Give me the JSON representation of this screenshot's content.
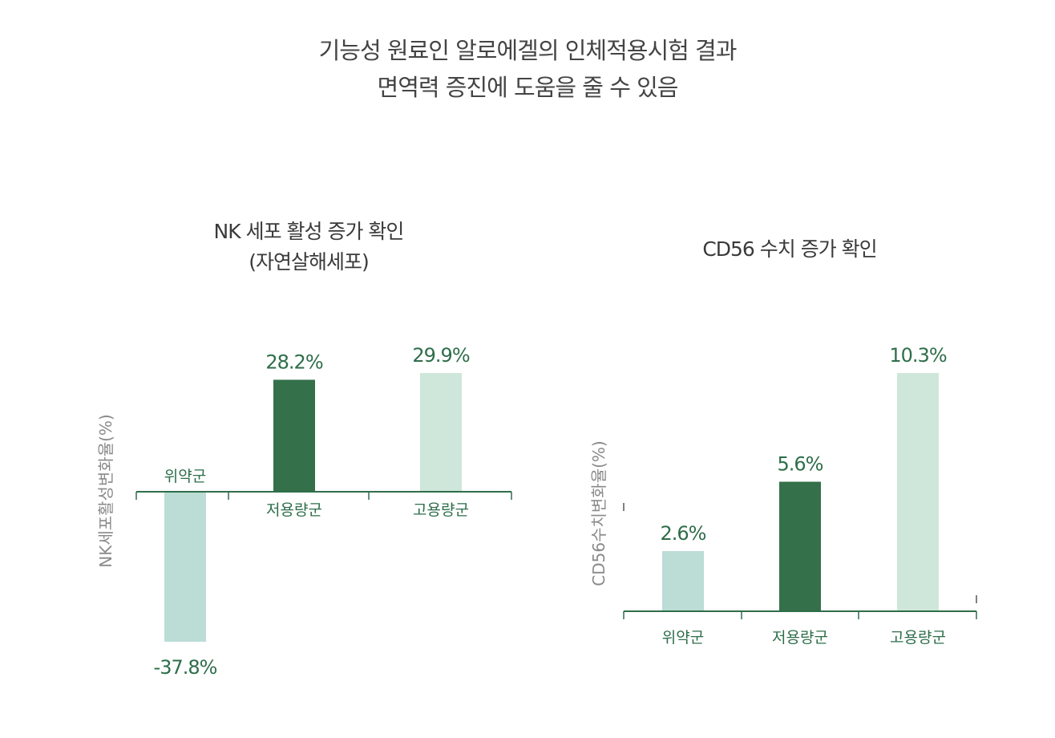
{
  "headline": {
    "line1": "기능성 원료인 알로에겔의 인체적용시험 결과",
    "line2": "면역력 증진에 도움을 줄 수 있음"
  },
  "colors": {
    "axis": "#2e6e4a",
    "label": "#2e6e4a",
    "placebo": "#bcdcd6",
    "low_dose": "#34704a",
    "high_dose": "#cfe6da",
    "ylabel": "#8a8a8a"
  },
  "chart_data": [
    {
      "type": "bar",
      "title_line1": "NK 세포 활성 증가 확인",
      "title_line2": "(자연살해세포)",
      "ylabel": "NK세포활성변화율(%)",
      "categories": [
        "위약군",
        "저용량군",
        "고용량군"
      ],
      "values": [
        -37.8,
        28.2,
        29.9
      ],
      "value_labels": [
        "-37.8%",
        "28.2%",
        "29.9%"
      ],
      "ylim": [
        -37.8,
        29.9
      ]
    },
    {
      "type": "bar",
      "title_line1": "CD56 수치 증가 확인",
      "ylabel": "CD56수치변화율(%)",
      "categories": [
        "위약군",
        "저용량군",
        "고용량군"
      ],
      "values": [
        2.6,
        5.6,
        10.3
      ],
      "value_labels": [
        "2.6%",
        "5.6%",
        "10.3%"
      ],
      "ylim": [
        0,
        10.3
      ]
    }
  ]
}
